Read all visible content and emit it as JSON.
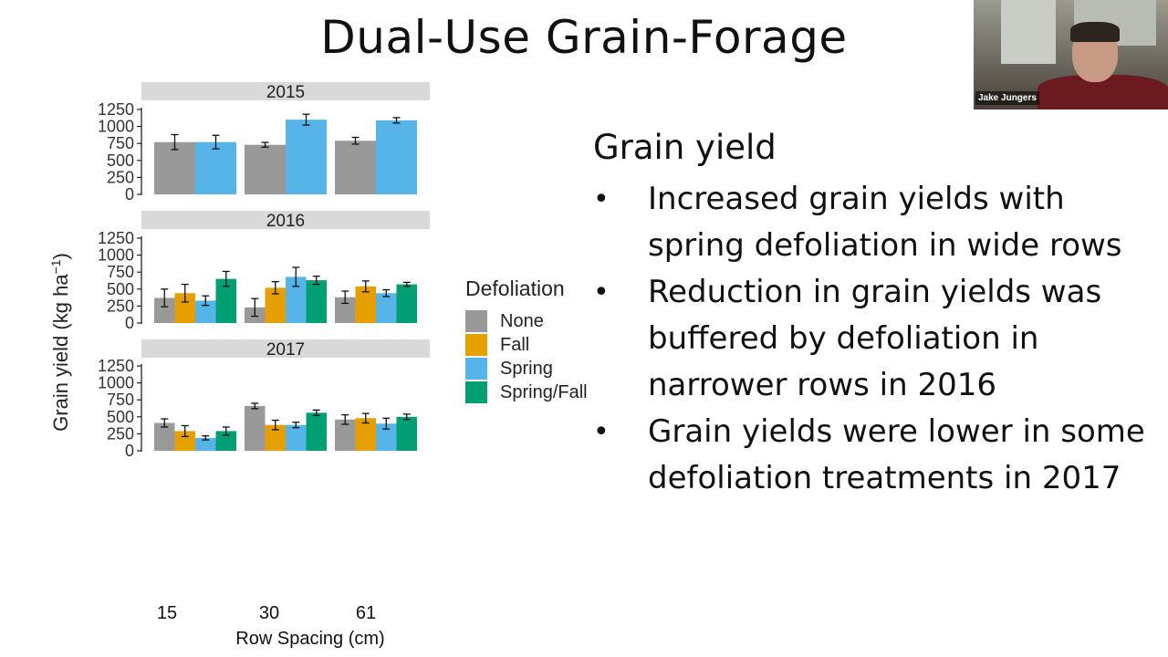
{
  "slide": {
    "title": "Dual-Use Grain-Forage"
  },
  "chart_data": {
    "type": "bar",
    "title": "",
    "ylabel": "Grain yield (kg ha",
    "ylabel_superscript": "−1",
    "ylabel_close": ")",
    "xlabel": "Row Spacing (cm)",
    "categories": [
      "15",
      "30",
      "61"
    ],
    "ylim": [
      0,
      1250
    ],
    "yticks": [
      0,
      250,
      500,
      750,
      1000,
      1250
    ],
    "ytick_labels": [
      "0",
      "250",
      "500",
      "750",
      "1000",
      "1250"
    ],
    "legend_title": "Defoliation",
    "legend_position": "right",
    "grid": false,
    "series_names": [
      "None",
      "Fall",
      "Spring",
      "Spring/Fall"
    ],
    "colors": {
      "None": "#999999",
      "Fall": "#E69F00",
      "Spring": "#56B4E9",
      "Spring/Fall": "#009E73"
    },
    "facet_strip_color": "#d9d9d9",
    "panels": [
      {
        "label": "2015",
        "series": [
          {
            "name": "None",
            "values": [
              770,
              730,
              790
            ],
            "errors": [
              110,
              35,
              50
            ]
          },
          {
            "name": "Spring",
            "values": [
              770,
              1100,
              1090
            ],
            "errors": [
              100,
              80,
              40
            ]
          }
        ]
      },
      {
        "label": "2016",
        "series": [
          {
            "name": "None",
            "values": [
              370,
              230,
              380
            ],
            "errors": [
              130,
              130,
              90
            ]
          },
          {
            "name": "Fall",
            "values": [
              440,
              520,
              540
            ],
            "errors": [
              130,
              90,
              80
            ]
          },
          {
            "name": "Spring",
            "values": [
              330,
              680,
              440
            ],
            "errors": [
              70,
              140,
              50
            ]
          },
          {
            "name": "Spring/Fall",
            "values": [
              650,
              630,
              570
            ],
            "errors": [
              110,
              60,
              30
            ]
          }
        ]
      },
      {
        "label": "2017",
        "series": [
          {
            "name": "None",
            "values": [
              410,
              660,
              460
            ],
            "errors": [
              60,
              40,
              70
            ]
          },
          {
            "name": "Fall",
            "values": [
              290,
              380,
              480
            ],
            "errors": [
              80,
              70,
              70
            ]
          },
          {
            "name": "Spring",
            "values": [
              190,
              380,
              400
            ],
            "errors": [
              30,
              40,
              80
            ]
          },
          {
            "name": "Spring/Fall",
            "values": [
              290,
              560,
              500
            ],
            "errors": [
              60,
              40,
              40
            ]
          }
        ]
      }
    ]
  },
  "bullets": {
    "heading": "Grain yield",
    "marker": "•",
    "items": [
      "Increased grain yields with spring defoliation in wide rows",
      "Reduction in grain yields was buffered by defoliation in narrower rows in 2016",
      "Grain yields were lower in some defoliation treatments in 2017"
    ]
  },
  "webcam": {
    "name": "Jake Jungers"
  }
}
